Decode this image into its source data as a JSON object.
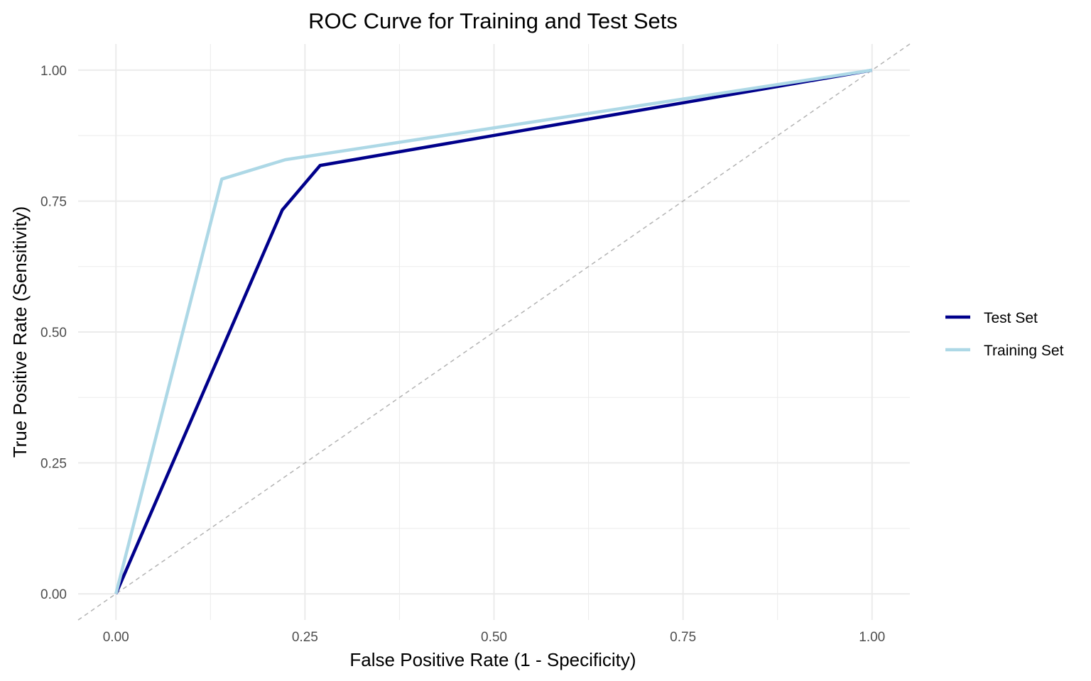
{
  "chart_data": {
    "type": "line",
    "title": "ROC Curve for Training and Test Sets",
    "xlabel": "False Positive Rate (1 - Specificity)",
    "ylabel": "True Positive Rate (Sensitivity)",
    "xlim": [
      -0.05,
      1.05
    ],
    "ylim": [
      -0.05,
      1.05
    ],
    "x_ticks": [
      0,
      0.25,
      0.5,
      0.75,
      1
    ],
    "x_tick_labels": [
      "0.00",
      "0.25",
      "0.50",
      "0.75",
      "1.00"
    ],
    "y_ticks": [
      0,
      0.25,
      0.5,
      0.75,
      1
    ],
    "y_tick_labels": [
      "0.00",
      "0.25",
      "0.50",
      "0.75",
      "1.00"
    ],
    "grid": true,
    "legend_position": "right",
    "series": [
      {
        "name": "Test Set",
        "color": "#00008b",
        "x": [
          0,
          0.22,
          0.27,
          1
        ],
        "y": [
          0,
          0.733,
          0.818,
          1
        ]
      },
      {
        "name": "Training Set",
        "color": "#add8e6",
        "x": [
          0,
          0.14,
          0.224,
          1
        ],
        "y": [
          0,
          0.792,
          0.829,
          1
        ]
      }
    ],
    "reference_line": {
      "x": [
        -0.05,
        1.05
      ],
      "y": [
        -0.05,
        1.05
      ],
      "color": "#b3b3b3",
      "style": "dashed"
    }
  }
}
